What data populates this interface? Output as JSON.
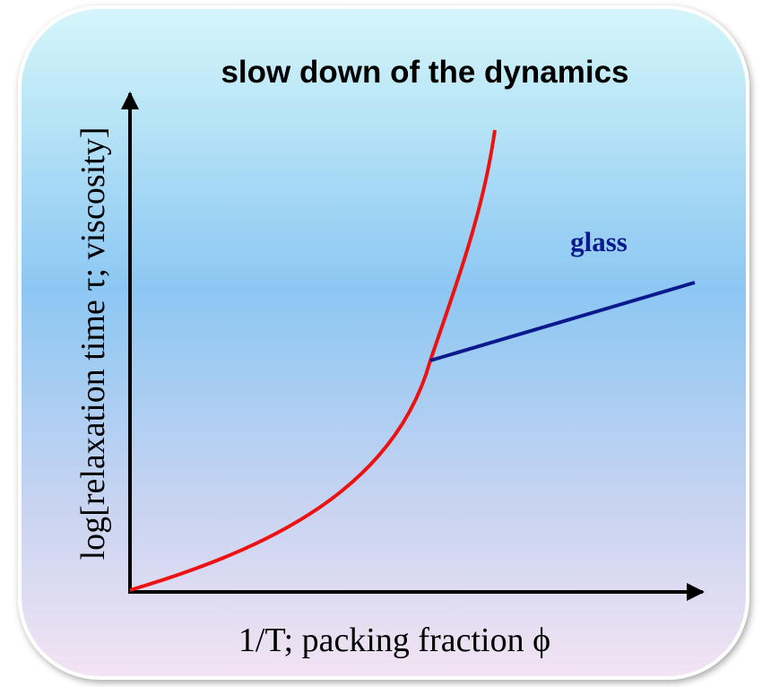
{
  "title": "slow down of the dynamics",
  "annotations": {
    "glass": "glass"
  },
  "axes": {
    "y_label": "log[relaxation time τ; viscosity]",
    "x_label": "1/T; packing fraction ϕ"
  }
}
